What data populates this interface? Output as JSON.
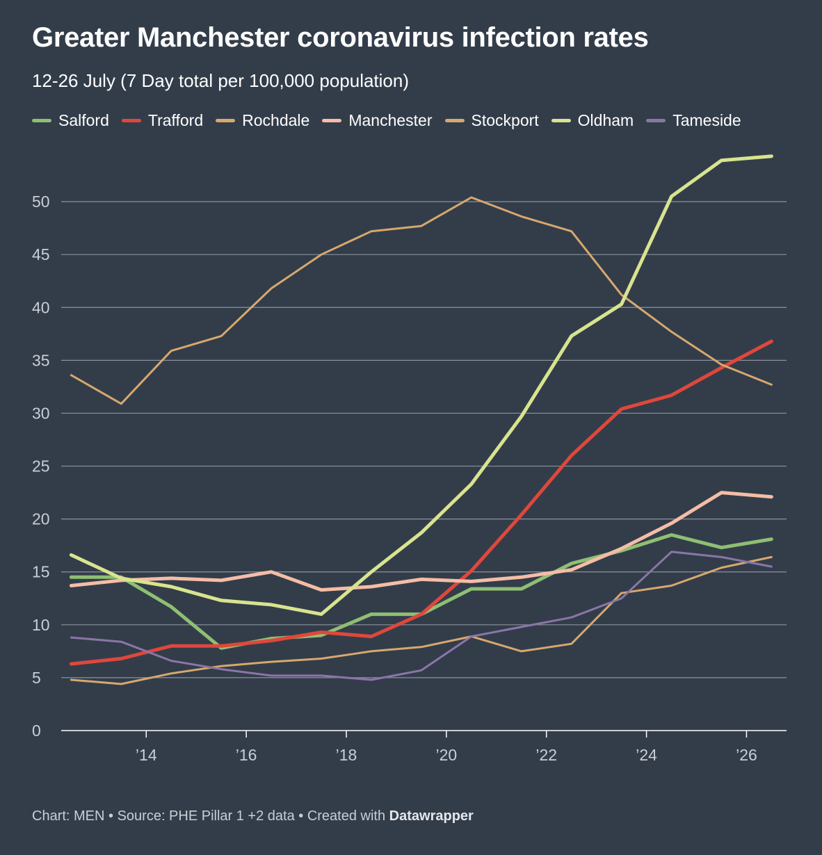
{
  "title": "Greater Manchester coronavirus infection rates",
  "subtitle": "12-26 July (7 Day total per 100,000 population)",
  "footer": {
    "prefix": "Chart: MEN • Source: PHE Pillar 1 +2 data • Created with ",
    "brand": "Datawrapper"
  },
  "chart_data": {
    "type": "line",
    "x": [
      12.5,
      13.5,
      14.5,
      15.5,
      16.5,
      17.5,
      18.5,
      19.5,
      20.5,
      21.5,
      22.5,
      23.5,
      24.5,
      25.5,
      26.5
    ],
    "xticks": [
      14,
      16,
      18,
      20,
      22,
      24,
      26
    ],
    "xtick_labels": [
      "’14",
      "’16",
      "’18",
      "’20",
      "’22",
      "’24",
      "’26"
    ],
    "xlim": [
      12.3,
      26.8
    ],
    "ylim": [
      0,
      55
    ],
    "yticks": [
      0,
      5,
      10,
      15,
      20,
      25,
      30,
      35,
      40,
      45,
      50
    ],
    "grid": true,
    "legend_position": "top-left",
    "series": [
      {
        "name": "Salford",
        "color": "#8fbf73",
        "width": 5,
        "values": [
          14.5,
          14.5,
          11.7,
          7.8,
          8.7,
          9.0,
          11.0,
          11.0,
          13.4,
          13.4,
          15.8,
          17.0,
          18.5,
          17.3,
          18.1
        ]
      },
      {
        "name": "Trafford",
        "color": "#e0473b",
        "width": 5,
        "values": [
          6.3,
          6.8,
          8.0,
          8.0,
          8.5,
          9.3,
          8.9,
          11.0,
          15.1,
          20.4,
          26.0,
          30.4,
          31.7,
          34.3,
          36.8
        ]
      },
      {
        "name": "Rochdale",
        "color": "#d7a86e",
        "width": 3,
        "values": [
          33.6,
          30.9,
          35.9,
          37.3,
          41.8,
          45.0,
          47.2,
          47.7,
          50.4,
          48.6,
          47.2,
          41.2,
          37.7,
          34.6,
          32.7
        ]
      },
      {
        "name": "Manchester",
        "color": "#f5bda6",
        "width": 5,
        "values": [
          13.7,
          14.2,
          14.4,
          14.2,
          15.0,
          13.3,
          13.6,
          14.3,
          14.1,
          14.5,
          15.2,
          17.2,
          19.6,
          22.5,
          22.1
        ]
      },
      {
        "name": "Stockport",
        "color": "#d7a86e",
        "width": 3,
        "values": [
          4.8,
          4.4,
          5.4,
          6.1,
          6.5,
          6.8,
          7.5,
          7.9,
          8.9,
          7.5,
          8.2,
          13.0,
          13.7,
          15.4,
          16.4
        ]
      },
      {
        "name": "Oldham",
        "color": "#d8e48f",
        "width": 5,
        "values": [
          16.6,
          14.4,
          13.6,
          12.3,
          11.9,
          11.0,
          15.0,
          18.7,
          23.3,
          29.7,
          37.3,
          40.3,
          50.5,
          53.9,
          54.3
        ]
      },
      {
        "name": "Tameside",
        "color": "#8a76a6",
        "width": 3,
        "values": [
          8.8,
          8.4,
          6.6,
          5.8,
          5.2,
          5.2,
          4.8,
          5.7,
          8.9,
          9.8,
          10.7,
          12.5,
          16.9,
          16.4,
          15.5
        ]
      }
    ]
  }
}
